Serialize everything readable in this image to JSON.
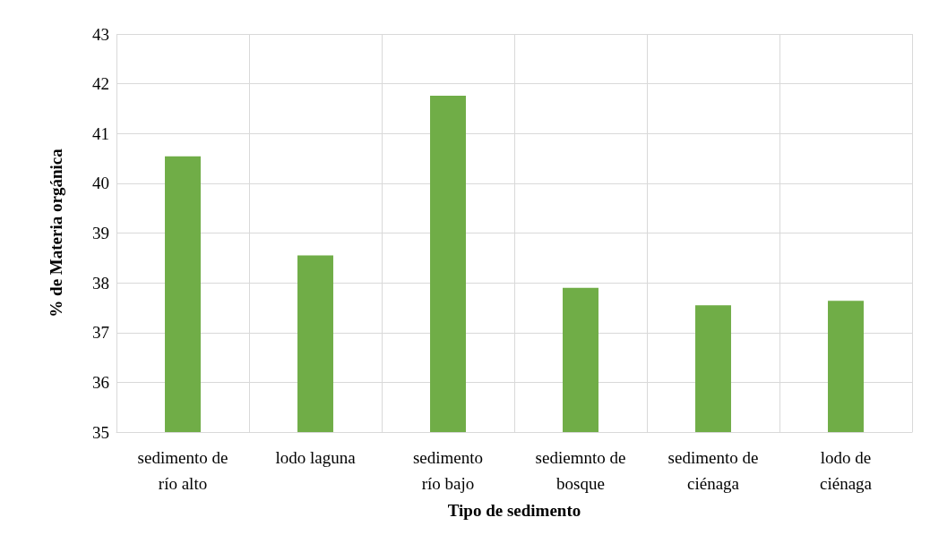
{
  "chart_data": {
    "type": "bar",
    "xlabel": "Tipo de sedimento",
    "ylabel": "% de Materia orgánica",
    "categories": [
      "sedimento de\nrío alto",
      "lodo laguna",
      "sedimento\nrío bajo",
      "sediemnto de\nbosque",
      "sedimento de\nciénaga",
      "lodo de\nciénaga"
    ],
    "values": [
      40.54,
      38.55,
      41.76,
      37.9,
      37.55,
      37.64
    ],
    "color": "#70ad47",
    "ylim": [
      35,
      43
    ],
    "yticks": [
      35,
      36,
      37,
      38,
      39,
      40,
      41,
      42,
      43
    ],
    "grid": true
  }
}
